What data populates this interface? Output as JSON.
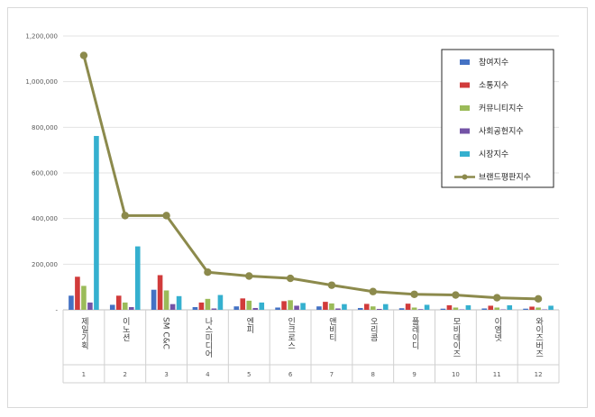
{
  "chart_data": {
    "type": "bar",
    "title": "",
    "xlabel": "",
    "ylabel": "",
    "ylim": [
      0,
      1200000
    ],
    "yticks": [
      0,
      200000,
      400000,
      600000,
      800000,
      1000000,
      1200000
    ],
    "ytick_labels": [
      "-",
      "200,000",
      "400,000",
      "600,000",
      "800,000",
      "1,000,000",
      "1,200,000"
    ],
    "grid": true,
    "legend_position": "top-right",
    "categories": [
      "제일기획",
      "이노션",
      "SM C&C",
      "나스미디어",
      "엔피",
      "인크로스",
      "앤비티",
      "오리콤",
      "플레이디",
      "모비데이즈",
      "이엠넷",
      "와이즈버즈"
    ],
    "category_index": [
      "1",
      "2",
      "3",
      "4",
      "5",
      "6",
      "7",
      "8",
      "9",
      "10",
      "11",
      "12"
    ],
    "series": [
      {
        "name": "참여지수",
        "kind": "bar",
        "color": "#4472c4",
        "values": [
          62000,
          22000,
          88000,
          12000,
          15000,
          10000,
          15000,
          8000,
          7000,
          5000,
          6000,
          5000
        ]
      },
      {
        "name": "소통지수",
        "kind": "bar",
        "color": "#d13b3b",
        "values": [
          145000,
          62000,
          152000,
          32000,
          50000,
          38000,
          35000,
          26000,
          27000,
          20000,
          18000,
          14000
        ]
      },
      {
        "name": "커뮤니티지수",
        "kind": "bar",
        "color": "#9bbb59",
        "values": [
          105000,
          32000,
          85000,
          48000,
          40000,
          42000,
          28000,
          15000,
          10000,
          10000,
          10000,
          10000
        ]
      },
      {
        "name": "사회공헌지수",
        "kind": "bar",
        "color": "#7453a6",
        "values": [
          32000,
          12000,
          25000,
          6000,
          8000,
          18000,
          6000,
          4000,
          3000,
          2000,
          2000,
          2000
        ]
      },
      {
        "name": "시장지수",
        "kind": "bar",
        "color": "#35b0cf",
        "values": [
          762000,
          278000,
          60000,
          65000,
          32000,
          30000,
          25000,
          25000,
          22000,
          20000,
          20000,
          18000
        ]
      },
      {
        "name": "브랜드평판지수",
        "kind": "line",
        "color": "#8c8a4c",
        "values": [
          1115000,
          413000,
          413000,
          165000,
          148000,
          138000,
          108000,
          80000,
          68000,
          65000,
          53000,
          48000
        ]
      }
    ]
  }
}
